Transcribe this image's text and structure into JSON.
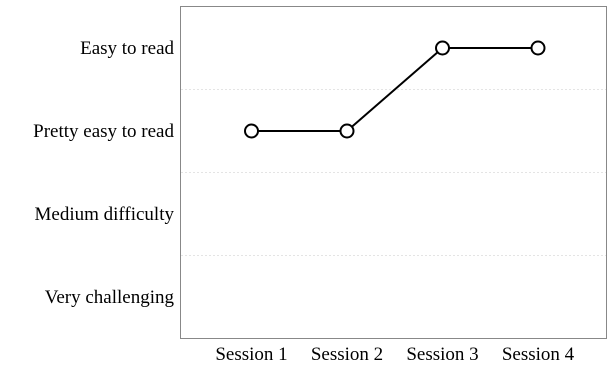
{
  "chart_data": {
    "type": "line",
    "x": [
      "Session 1",
      "Session 2",
      "Session 3",
      "Session 4"
    ],
    "y_categories": [
      "Very challenging",
      "Medium difficulty",
      "Pretty easy to read",
      "Easy to read"
    ],
    "series": [
      {
        "values": [
          "Pretty easy to read",
          "Pretty easy to read",
          "Easy to read",
          "Easy to read"
        ]
      }
    ],
    "title": "",
    "xlabel": "",
    "ylabel": "",
    "grid": "horizontal",
    "marker": "hollow-circle",
    "line_color": "#000000"
  }
}
